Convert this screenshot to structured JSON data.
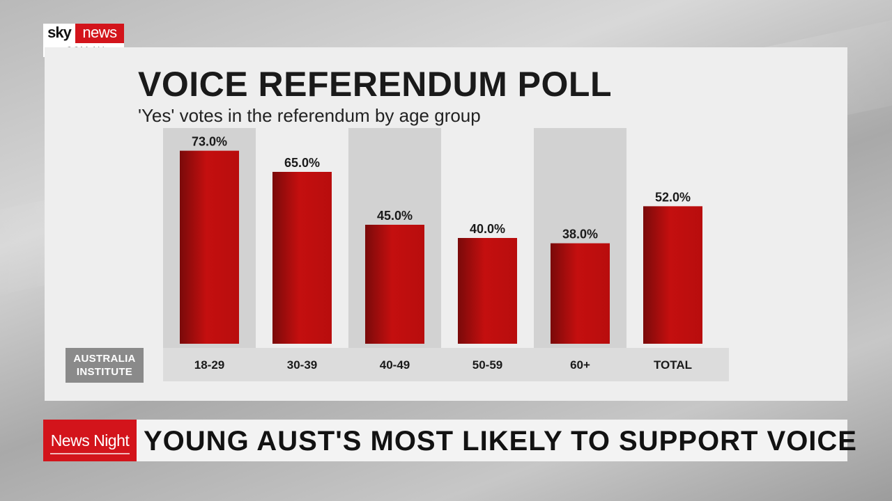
{
  "logo": {
    "brand_primary": "sky",
    "brand_secondary": "news",
    "domain": ".COM.AU"
  },
  "chart_data": {
    "type": "bar",
    "title": "VOICE REFERENDUM POLL",
    "subtitle": "'Yes' votes in the referendum by age group",
    "categories": [
      "18-29",
      "30-39",
      "40-49",
      "50-59",
      "60+",
      "TOTAL"
    ],
    "values": [
      73.0,
      65.0,
      45.0,
      40.0,
      38.0,
      52.0
    ],
    "data_labels": [
      "73.0%",
      "65.0%",
      "45.0%",
      "40.0%",
      "38.0%",
      "52.0%"
    ],
    "unit": "%",
    "ylim": [
      0,
      80
    ],
    "grid": false,
    "bar_color": "#c40f0f",
    "alternating_band_color": "#d2d2d2"
  },
  "source": {
    "label": "AUSTRALIA INSTITUTE"
  },
  "lower_third": {
    "show_name": "News Night",
    "headline": "YOUNG AUST'S MOST LIKELY TO SUPPORT VOICE"
  }
}
